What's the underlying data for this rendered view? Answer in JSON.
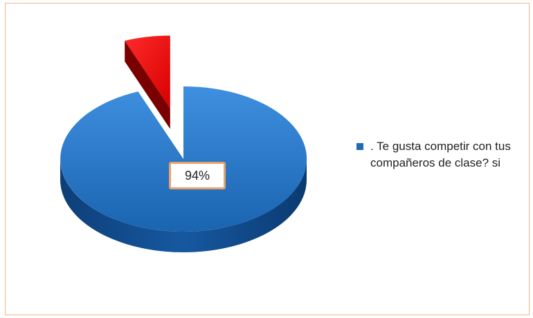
{
  "chart_data": {
    "type": "pie",
    "title": "",
    "slices": [
      {
        "label": ". Te gusta competir con tus compañeros de clase? si",
        "value": 94,
        "color": "#1f6bb5"
      },
      {
        "label": "",
        "value": 6,
        "color": "#e60000"
      }
    ],
    "data_labels": [
      "94%"
    ],
    "legend": {
      "position": "right",
      "entries": [
        ". Te gusta competir con tus compañeros de clase? si"
      ]
    },
    "style": "3d-exploded"
  },
  "colors": {
    "frame_border": "#f2b48a",
    "label_border": "#e8a26a"
  }
}
